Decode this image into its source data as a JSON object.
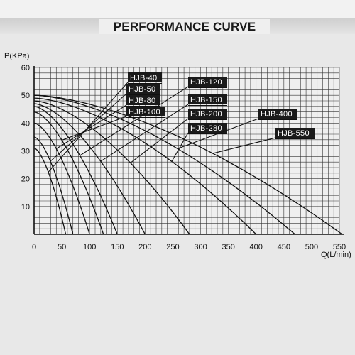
{
  "page": {
    "title": "PERFORMANCE CURVE"
  },
  "chart_data": {
    "type": "line",
    "ylabel": "P(KPa)",
    "xlabel": "Q(L/min)",
    "xlim": [
      0,
      550
    ],
    "ylim": [
      0,
      60
    ],
    "x_ticks": [
      0,
      50,
      100,
      150,
      200,
      250,
      300,
      350,
      400,
      450,
      500,
      550
    ],
    "y_ticks": [
      10,
      20,
      30,
      40,
      50,
      60
    ],
    "grid": true,
    "series": [
      {
        "name": "HJB-40",
        "shutoff": 31,
        "max_flow": 57
      },
      {
        "name": "HJB-50",
        "shutoff": 35,
        "max_flow": 70
      },
      {
        "name": "HJB-80",
        "shutoff": 40,
        "max_flow": 100
      },
      {
        "name": "HJB-100",
        "shutoff": 44,
        "max_flow": 125
      },
      {
        "name": "HJB-120",
        "shutoff": 46,
        "max_flow": 150
      },
      {
        "name": "HJB-150",
        "shutoff": 47,
        "max_flow": 200
      },
      {
        "name": "HJB-200",
        "shutoff": 48,
        "max_flow": 280
      },
      {
        "name": "HJB-280",
        "shutoff": 49,
        "max_flow": 400
      },
      {
        "name": "HJB-400",
        "shutoff": 50,
        "max_flow": 470
      },
      {
        "name": "HJB-550",
        "shutoff": 50,
        "max_flow": 555
      }
    ]
  }
}
